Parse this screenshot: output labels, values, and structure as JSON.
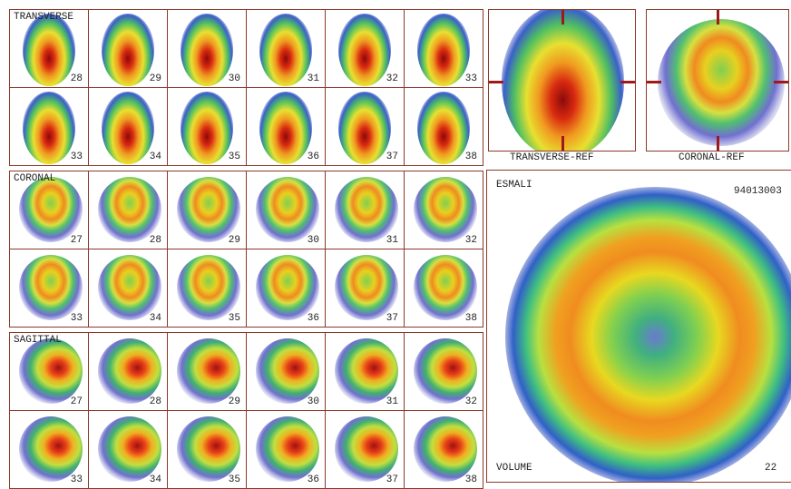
{
  "views": [
    {
      "label": "TRANSVERSE",
      "rows": [
        [
          28,
          29,
          30,
          31,
          32,
          33
        ],
        [
          33,
          34,
          35,
          36,
          37,
          38
        ]
      ]
    },
    {
      "label": "CORONAL",
      "rows": [
        [
          27,
          28,
          29,
          30,
          31,
          32
        ],
        [
          33,
          34,
          35,
          36,
          37,
          38
        ]
      ]
    },
    {
      "label": "SAGITTAL",
      "rows": [
        [
          27,
          28,
          29,
          30,
          31,
          32
        ],
        [
          33,
          34,
          35,
          36,
          37,
          38
        ]
      ]
    }
  ],
  "references": [
    "TRANSVERSE-REF",
    "CORONAL-REF"
  ],
  "main": {
    "patient": "ESMALI",
    "id": "94013003",
    "mode": "VOLUME",
    "slice": 22
  }
}
